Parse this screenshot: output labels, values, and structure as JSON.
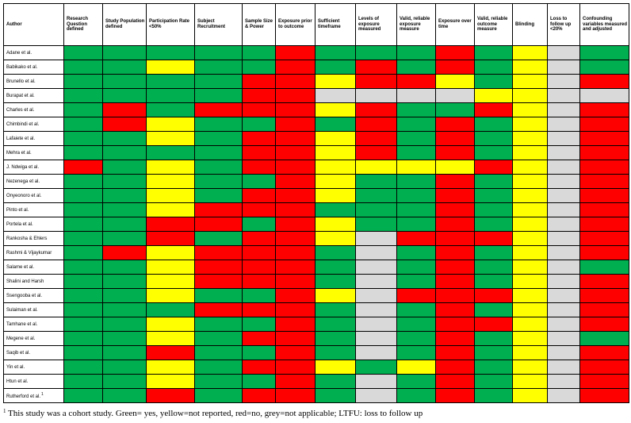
{
  "table": {
    "columns": [
      "Author",
      "Research Question defined",
      "Study Population defined",
      "Participation Rate <50%",
      "Subject Recruitment",
      "Sample Size & Power",
      "Exposure prior to outcome",
      "Sufficient timeframe",
      "Levels of exposure measured",
      "Valid, reliable exposure measure",
      "Exposure over time",
      "Valid, reliable outcome measure",
      "Blinding",
      "Loss to follow up <20%",
      "Confounding variables measured and adjusted"
    ],
    "colors": {
      "G": "#00b050",
      "Y": "#ffff00",
      "R": "#ff0000",
      "N": "#d9d9d9"
    },
    "rows": [
      {
        "author": "Adane et al.",
        "ratings": "GGGGGRGGGRGYNG"
      },
      {
        "author": "Babikako et al.",
        "ratings": "GGYGGRGRGRGYNG"
      },
      {
        "author": "Brunello et al.",
        "ratings": "GGGGRRYRRYGYNR"
      },
      {
        "author": "Burapat et al.",
        "ratings": "GGGGRRNNNNYYNN"
      },
      {
        "author": "Charles et al.",
        "ratings": "GRGRRRYRGGRYNR"
      },
      {
        "author": "Chimbindi et al.",
        "ratings": "GRYGGRGRGRGYNR"
      },
      {
        "author": "Lafaiete et al.",
        "ratings": "GGYGRRYRGRGYNR"
      },
      {
        "author": "Mehra et al.",
        "ratings": "GGGGRRYRGRGYNR"
      },
      {
        "author": "J. Ndwiga et al.",
        "ratings": "RGYGRRYYYYRYNR"
      },
      {
        "author": "Nezenega et al.",
        "ratings": "GGYGGRYGGRGYNR"
      },
      {
        "author": "Onyeonoro et al.",
        "ratings": "GGYGRRYGGRGYNR"
      },
      {
        "author": "Pinto et al.",
        "ratings": "GGYRRRGGGRGYNR"
      },
      {
        "author": "Portela et al.",
        "ratings": "GGRRGRYGGRGYNR"
      },
      {
        "author": "Rankosha & Ehlers",
        "ratings": "GGRGRRYNRRRYNR"
      },
      {
        "author": "Rashmi & Vijaykumar",
        "ratings": "GRYRRRGNGRGYNR"
      },
      {
        "author": "Salame et al.",
        "ratings": "GGYRRRGNGRGYNG"
      },
      {
        "author": "Shalini and Harsh",
        "ratings": "GGYRRRGNGRGYNR"
      },
      {
        "author": "Ssengooba et al.",
        "ratings": "GGYGGRYNRRRYNR"
      },
      {
        "author": "Sulaiman et al.",
        "ratings": "GGGRRRGNGRGYNR"
      },
      {
        "author": "Tamhane et al.",
        "ratings": "GGYGGRGNGRRYNR"
      },
      {
        "author": "Megene et al.",
        "ratings": "GGYGRRGNGRGYNG"
      },
      {
        "author": "Saqib et al.",
        "ratings": "GGRGGRGNGRGYNR"
      },
      {
        "author": "Yin et al.",
        "ratings": "GGYGRRYGYRGYNR"
      },
      {
        "author": "Htun et al.",
        "ratings": "GGYGGRGNGRGYNR"
      },
      {
        "author": "Rutherford et al.",
        "ratings": "GGRGRRGNGRGYNR",
        "footnote_mark": "1"
      }
    ]
  },
  "footnote": {
    "mark": "1",
    "text": " This study was a cohort study. Green= yes, yellow=not reported, red=no, grey=not applicable; LTFU: loss to follow up"
  }
}
